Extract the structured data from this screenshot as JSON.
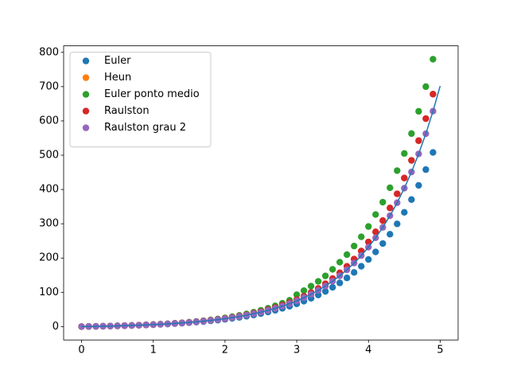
{
  "chart_data": {
    "type": "scatter",
    "xlim": [
      -0.25,
      5.25
    ],
    "ylim": [
      -39,
      819
    ],
    "xticks": [
      0,
      1,
      2,
      3,
      4,
      5
    ],
    "yticks": [
      0,
      100,
      200,
      300,
      400,
      500,
      600,
      700,
      800
    ],
    "legend": "upper left",
    "x": [
      0,
      0.1,
      0.2,
      0.3,
      0.4,
      0.5,
      0.6,
      0.7,
      0.8,
      0.9,
      1.0,
      1.1,
      1.2,
      1.3,
      1.4,
      1.5,
      1.6,
      1.7,
      1.8,
      1.9,
      2.0,
      2.1,
      2.2,
      2.3,
      2.4,
      2.5,
      2.6,
      2.7,
      2.8,
      2.9,
      3.0,
      3.1,
      3.2,
      3.3,
      3.4,
      3.5,
      3.6,
      3.7,
      3.8,
      3.9,
      4.0,
      4.1,
      4.2,
      4.3,
      4.4,
      4.5,
      4.6,
      4.7,
      4.8,
      4.9
    ],
    "series": [
      {
        "name": "Euler",
        "color": "#1f77b4",
        "values": [
          0,
          0.33,
          0.7,
          1.1,
          1.57,
          2.07,
          2.63,
          3.25,
          3.93,
          4.7,
          5.55,
          6.49,
          7.53,
          8.69,
          9.98,
          11.41,
          13.0,
          14.77,
          16.72,
          18.9,
          21.3,
          24.0,
          27.0,
          30.3,
          34.0,
          38.1,
          42.6,
          47.7,
          53.3,
          59.5,
          66.5,
          74.2,
          82.7,
          92.2,
          102.8,
          114.5,
          127.5,
          142.0,
          158.1,
          176.0,
          195.8,
          217.8,
          242.3,
          269.5,
          299.7,
          333.3,
          370.6,
          412.0,
          458.0,
          508.0
        ]
      },
      {
        "name": "Heun",
        "color": "#ff7f0e",
        "values": [
          0,
          0.33,
          0.71,
          1.14,
          1.6,
          2.13,
          2.72,
          3.38,
          4.11,
          4.94,
          5.86,
          6.9,
          8.05,
          9.34,
          10.79,
          12.42,
          14.22,
          16.25,
          18.51,
          21.03,
          23.9,
          27.0,
          30.6,
          34.5,
          39.0,
          43.9,
          49.4,
          55.6,
          62.5,
          70.3,
          78.9,
          88.5,
          99.4,
          111.4,
          124.9,
          140.1,
          156.9,
          175.8,
          196.9,
          220.5,
          246.8,
          276.3,
          309.3,
          346.1,
          387.3,
          433.4,
          484.9,
          542.4,
          606.7,
          678.0
        ]
      },
      {
        "name": "Euler ponto medio",
        "color": "#2ca02c",
        "values": [
          0,
          0.33,
          0.72,
          1.15,
          1.62,
          2.16,
          2.77,
          3.46,
          4.22,
          5.09,
          6.06,
          7.15,
          8.37,
          9.74,
          11.28,
          13.02,
          14.96,
          17.14,
          19.58,
          22.31,
          25.4,
          28.8,
          32.7,
          37.1,
          41.9,
          47.4,
          53.5,
          60.4,
          68.0,
          76.7,
          93.0,
          105.0,
          118.0,
          132.0,
          148.0,
          167.0,
          188.0,
          210.0,
          235.0,
          262.0,
          292.0,
          327.0,
          363.0,
          405.0,
          455.0,
          505.0,
          563.0,
          628.0,
          700.0,
          780.0
        ]
      },
      {
        "name": "Raulston",
        "color": "#d62728",
        "values": [
          0,
          0.33,
          0.71,
          1.14,
          1.6,
          2.13,
          2.72,
          3.38,
          4.11,
          4.94,
          5.86,
          6.9,
          8.05,
          9.34,
          10.79,
          12.42,
          14.22,
          16.25,
          18.51,
          21.03,
          23.9,
          27.0,
          30.6,
          34.5,
          39.0,
          43.9,
          49.4,
          55.6,
          62.5,
          70.3,
          78.9,
          88.5,
          99.4,
          111.4,
          124.9,
          140.1,
          156.9,
          175.8,
          196.9,
          220.5,
          246.8,
          276.3,
          309.3,
          346.1,
          387.3,
          433.4,
          484.9,
          542.4,
          606.7,
          678.0
        ]
      },
      {
        "name": "Raulston grau 2",
        "color": "#9467bd",
        "values": [
          0,
          0.33,
          0.71,
          1.13,
          1.59,
          2.11,
          2.69,
          3.34,
          4.06,
          4.87,
          5.77,
          6.78,
          7.9,
          9.15,
          10.55,
          12.12,
          13.86,
          15.81,
          17.98,
          20.4,
          23.11,
          26.13,
          29.51,
          33.27,
          37.48,
          42.17,
          47.41,
          53.26,
          59.78,
          67.07,
          75.21,
          84.28,
          94.42,
          105.73,
          118.36,
          132.48,
          148.2,
          165.76,
          185.37,
          207.26,
          231.7,
          258.98,
          289.41,
          323.42,
          361.35,
          403.69,
          451.0,
          503.74,
          562.63,
          628.42
        ]
      }
    ],
    "line": {
      "color": "#1f77b4",
      "x": [
        0,
        0.1,
        0.2,
        0.3,
        0.4,
        0.5,
        0.6,
        0.7,
        0.8,
        0.9,
        1.0,
        1.1,
        1.2,
        1.3,
        1.4,
        1.5,
        1.6,
        1.7,
        1.8,
        1.9,
        2.0,
        2.1,
        2.2,
        2.3,
        2.4,
        2.5,
        2.6,
        2.7,
        2.8,
        2.9,
        3.0,
        3.1,
        3.2,
        3.3,
        3.4,
        3.5,
        3.6,
        3.7,
        3.8,
        3.9,
        4.0,
        4.1,
        4.2,
        4.3,
        4.4,
        4.5,
        4.6,
        4.7,
        4.8,
        4.9,
        5.0
      ],
      "values": [
        0,
        0.33,
        0.71,
        1.13,
        1.59,
        2.11,
        2.69,
        3.34,
        4.06,
        4.87,
        5.77,
        6.78,
        7.9,
        9.15,
        10.55,
        12.12,
        13.86,
        15.81,
        17.98,
        20.4,
        23.11,
        26.13,
        29.51,
        33.27,
        37.48,
        42.17,
        47.41,
        53.26,
        59.78,
        67.07,
        75.21,
        84.28,
        94.42,
        105.73,
        118.36,
        132.48,
        148.2,
        165.76,
        185.37,
        207.26,
        231.7,
        258.98,
        289.41,
        323.42,
        361.35,
        403.69,
        451.0,
        503.74,
        562.63,
        628.42,
        701.83
      ]
    }
  }
}
